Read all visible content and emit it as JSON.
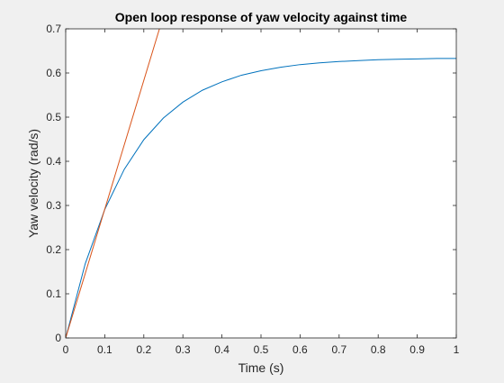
{
  "chart_data": {
    "type": "line",
    "title": "Open loop response of yaw velocity against time",
    "xlabel": "Time (s)",
    "ylabel": "Yaw velocity (rad/s)",
    "xlim": [
      0,
      1
    ],
    "ylim": [
      0,
      0.7
    ],
    "xticks": [
      0,
      0.1,
      0.2,
      0.3,
      0.4,
      0.5,
      0.6,
      0.7,
      0.8,
      0.9,
      1
    ],
    "xtick_labels": [
      "0",
      "0.1",
      "0.2",
      "0.3",
      "0.4",
      "0.5",
      "0.6",
      "0.7",
      "0.8",
      "0.9",
      "1"
    ],
    "yticks": [
      0,
      0.1,
      0.2,
      0.3,
      0.4,
      0.5,
      0.6,
      0.7
    ],
    "ytick_labels": [
      "0",
      "0.1",
      "0.2",
      "0.3",
      "0.4",
      "0.5",
      "0.6",
      "0.7"
    ],
    "grid": false,
    "series": [
      {
        "color": "#0072bd",
        "x": [
          0,
          0.05,
          0.1,
          0.15,
          0.2,
          0.25,
          0.3,
          0.35,
          0.4,
          0.45,
          0.5,
          0.55,
          0.6,
          0.65,
          0.7,
          0.75,
          0.8,
          0.85,
          0.9,
          0.95,
          1.0
        ],
        "y": [
          0,
          0.168,
          0.291,
          0.382,
          0.449,
          0.498,
          0.534,
          0.561,
          0.58,
          0.595,
          0.605,
          0.613,
          0.619,
          0.623,
          0.626,
          0.628,
          0.63,
          0.631,
          0.632,
          0.633,
          0.633
        ]
      },
      {
        "color": "#d95319",
        "x": [
          0,
          0.24
        ],
        "y": [
          0,
          0.7
        ]
      }
    ]
  }
}
